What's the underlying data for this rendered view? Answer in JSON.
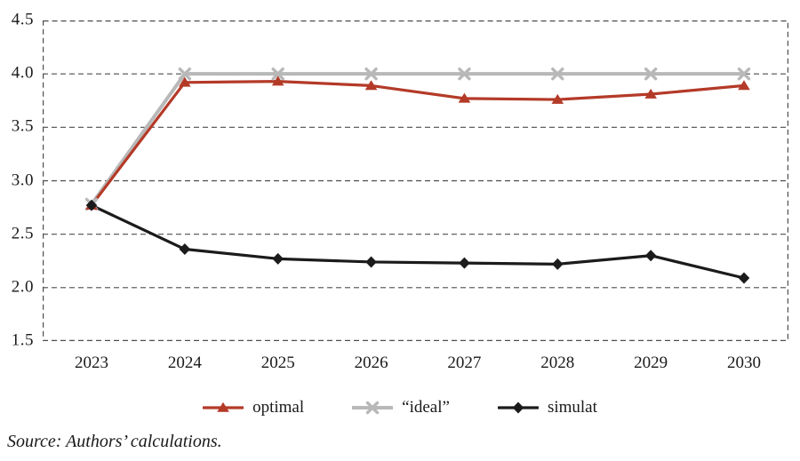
{
  "figure": {
    "source_note": "Source: Authors’ calculations."
  },
  "chart_data": {
    "type": "line",
    "title": "",
    "xlabel": "",
    "ylabel": "",
    "x": [
      "2023",
      "2024",
      "2025",
      "2026",
      "2027",
      "2028",
      "2029",
      "2030"
    ],
    "series": [
      {
        "name": "optimal",
        "marker": "triangle",
        "color": "#b43a28",
        "values": [
          2.77,
          3.92,
          3.93,
          3.89,
          3.77,
          3.76,
          3.81,
          3.89
        ]
      },
      {
        "name": "“ideal”",
        "marker": "x",
        "color": "#b8b8b8",
        "values": [
          2.78,
          4.0,
          4.0,
          4.0,
          4.0,
          4.0,
          4.0,
          4.0
        ]
      },
      {
        "name": "simulat",
        "marker": "diamond",
        "color": "#1b1b1b",
        "values": [
          2.77,
          2.36,
          2.27,
          2.24,
          2.23,
          2.22,
          2.3,
          2.09
        ]
      }
    ],
    "ylim": [
      1.5,
      4.5
    ],
    "yticks": [
      4.5,
      4.0,
      3.5,
      3.0,
      2.5,
      2.0,
      1.5
    ],
    "ytick_labels": [
      "4.5",
      "4.0",
      "3.5",
      "3.0",
      "2.5",
      "2.0",
      "1.5"
    ],
    "grid": "horizontal-dashed",
    "border": "dashed",
    "axis_color": "#4d4d4d",
    "text_color": "#1a1a1a",
    "legend_position": "bottom"
  }
}
